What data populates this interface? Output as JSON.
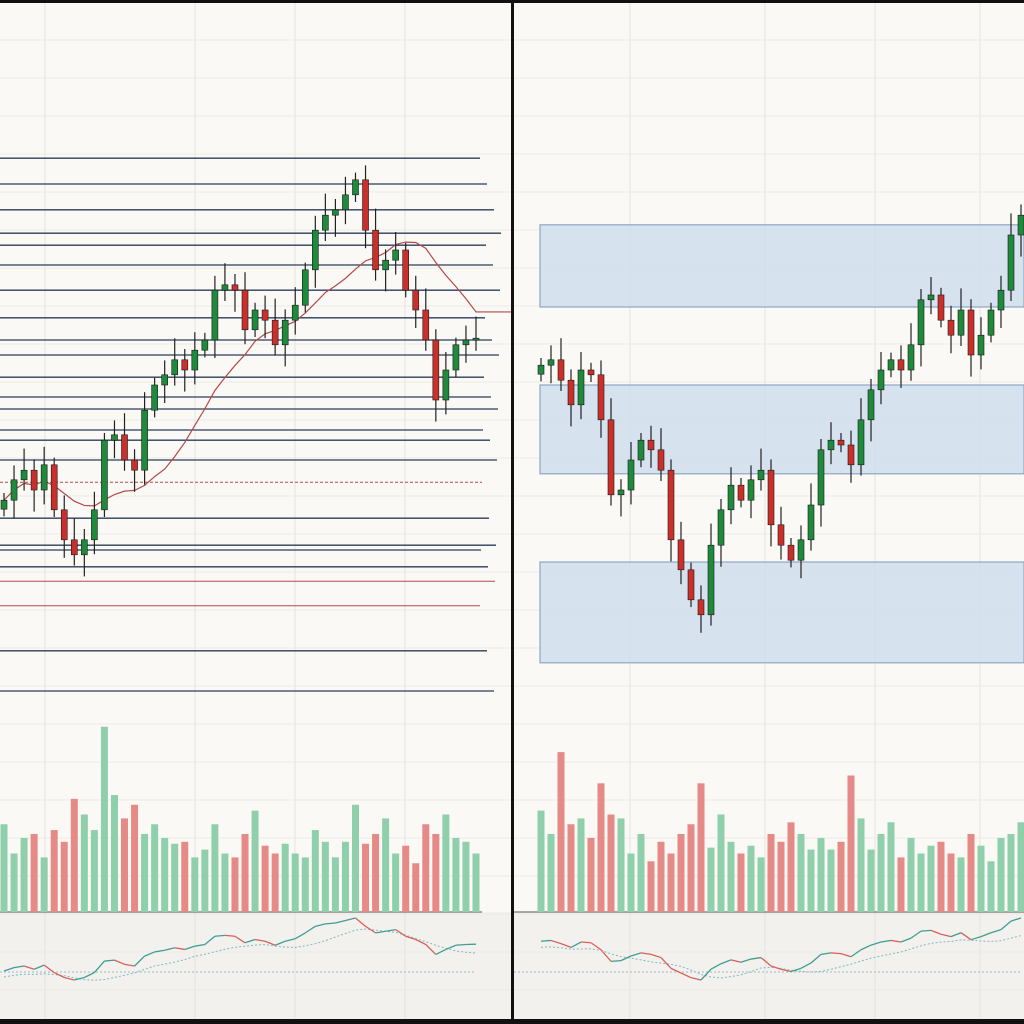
{
  "colors": {
    "background": "#fbf9f5",
    "up": "#1f8a3c",
    "down": "#c9302c",
    "volume_up": "#8fcfab",
    "volume_down": "#e68a88",
    "zone": "#cfdeec",
    "zone_border": "#8da7c6",
    "level_line": "#2a3f5a",
    "level_line_red": "#b84a4a",
    "moving_average": "#b24a4a",
    "frame": "#111111"
  },
  "chart_data": [
    {
      "type": "candlestick",
      "title": "",
      "xlabel": "",
      "ylabel": "",
      "ylim": [
        0,
        100
      ],
      "grid": true,
      "closes": [
        33.3,
        36.7,
        38.3,
        35,
        39.2,
        31.7,
        26.7,
        24.2,
        26.7,
        31.7,
        43.3,
        44.2,
        40,
        38.3,
        48.3,
        52.5,
        54.2,
        56.7,
        55,
        58.3,
        60,
        68.3,
        69.2,
        68.3,
        61.7,
        65,
        63.3,
        59.2,
        63.3,
        65.8,
        71.7,
        78.3,
        80.8,
        81.7,
        84.2,
        86.7,
        78.3,
        71.7,
        73.3,
        75,
        68.3,
        65,
        60,
        50,
        55,
        59.2,
        60,
        60.3
      ],
      "volumes": [
        45,
        30,
        38,
        40,
        28,
        42,
        36,
        58,
        50,
        42,
        95,
        60,
        48,
        55,
        40,
        45,
        38,
        35,
        36,
        28,
        32,
        45,
        30,
        28,
        40,
        52,
        34,
        30,
        35,
        30,
        28,
        42,
        36,
        28,
        36,
        55,
        35,
        40,
        48,
        30,
        34,
        25,
        45,
        40,
        50,
        38,
        36,
        30
      ],
      "horizontal_levels": [
        {
          "value": 90.3,
          "style": "solid"
        },
        {
          "value": 86,
          "style": "solid"
        },
        {
          "value": 81.7,
          "style": "solid"
        },
        {
          "value": 77.8,
          "style": "solid"
        },
        {
          "value": 75.8,
          "style": "solid"
        },
        {
          "value": 72.5,
          "style": "solid"
        },
        {
          "value": 68.3,
          "style": "solid"
        },
        {
          "value": 63.7,
          "style": "solid"
        },
        {
          "value": 60,
          "style": "solid"
        },
        {
          "value": 57.5,
          "style": "solid"
        },
        {
          "value": 53.8,
          "style": "solid"
        },
        {
          "value": 50.5,
          "style": "solid"
        },
        {
          "value": 48.5,
          "style": "solid"
        },
        {
          "value": 45,
          "style": "solid"
        },
        {
          "value": 43.3,
          "style": "solid"
        },
        {
          "value": 40,
          "style": "solid"
        },
        {
          "value": 36.3,
          "style": "dashed-red"
        },
        {
          "value": 30.3,
          "style": "solid"
        },
        {
          "value": 25.8,
          "style": "solid"
        },
        {
          "value": 25,
          "style": "solid"
        },
        {
          "value": 22.2,
          "style": "solid"
        },
        {
          "value": 19.8,
          "style": "red"
        },
        {
          "value": 15.7,
          "style": "red"
        },
        {
          "value": 8.2,
          "style": "solid"
        },
        {
          "value": 1.5,
          "style": "solid"
        }
      ],
      "moving_average": true,
      "oscillator": true
    },
    {
      "type": "candlestick",
      "title": "",
      "xlabel": "",
      "ylabel": "",
      "ylim": [
        0,
        100
      ],
      "grid": true,
      "closes": [
        55.8,
        56.7,
        53.3,
        49.2,
        55,
        54.2,
        46.7,
        34.2,
        35,
        40,
        43.3,
        41.7,
        38.3,
        26.7,
        21.7,
        16.7,
        14.2,
        25.8,
        31.7,
        35.8,
        33.3,
        36.7,
        38.3,
        29.2,
        25.8,
        23.3,
        26.7,
        32.5,
        41.7,
        43.3,
        42.5,
        39.2,
        46.7,
        51.7,
        55,
        56.7,
        55,
        59.2,
        66.7,
        67.5,
        63.3,
        60.8,
        65,
        57.5,
        60.8,
        65,
        68.3,
        77.5,
        80.8
      ],
      "volumes": [
        52,
        40,
        82,
        45,
        48,
        38,
        66,
        50,
        48,
        30,
        40,
        26,
        36,
        30,
        40,
        45,
        66,
        33,
        50,
        36,
        30,
        34,
        28,
        40,
        36,
        46,
        40,
        32,
        38,
        32,
        36,
        70,
        48,
        32,
        40,
        46,
        28,
        38,
        30,
        34,
        36,
        30,
        28,
        40,
        34,
        26,
        38,
        40,
        46
      ],
      "zones": [
        {
          "from": 65.5,
          "to": 79.2
        },
        {
          "from": 37.7,
          "to": 52.5
        },
        {
          "from": 6.2,
          "to": 23
        }
      ],
      "oscillator": true
    }
  ]
}
